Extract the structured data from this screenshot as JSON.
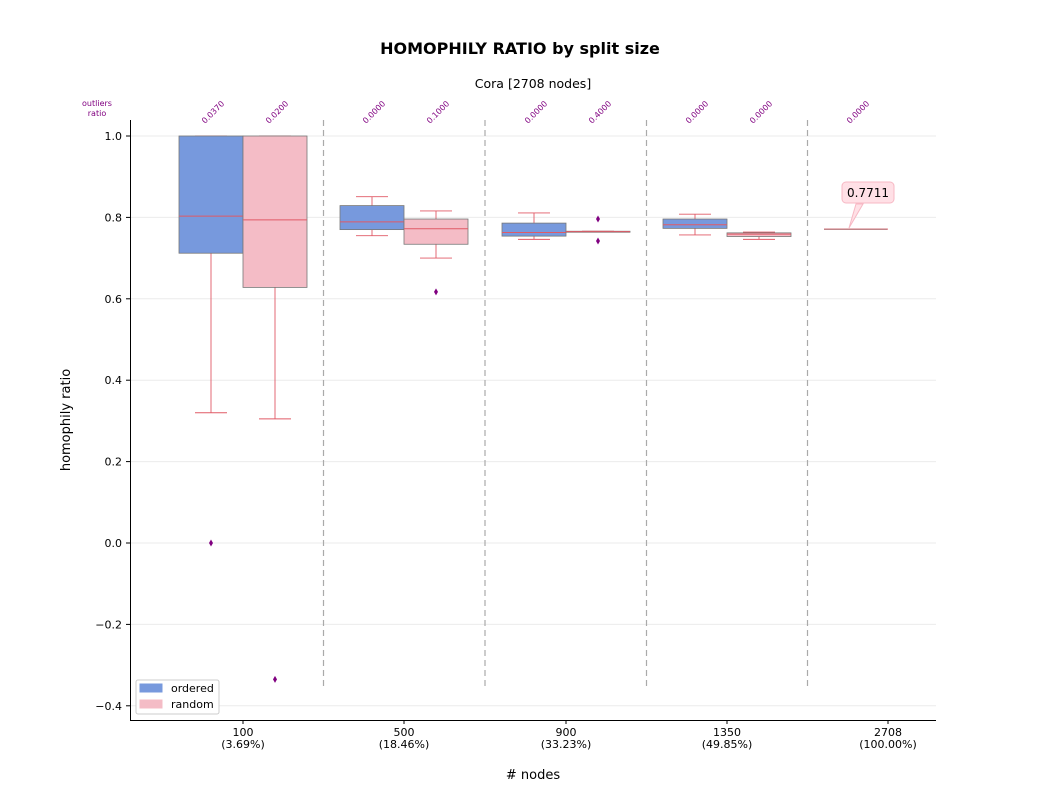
{
  "chart_data": {
    "type": "box",
    "title": "HOMOPHILY RATIO by split size",
    "subtitle": "Cora [2708 nodes]",
    "xlabel": "# nodes",
    "ylabel": "homophily ratio",
    "ylim": [
      -0.43,
      1.035
    ],
    "yticks": [
      -0.4,
      -0.2,
      0.0,
      0.2,
      0.4,
      0.6,
      0.8,
      1.0
    ],
    "ytick_labels": [
      "−0.4",
      "−0.2",
      "0.0",
      "0.2",
      "0.4",
      "0.6",
      "0.8",
      "1.0"
    ],
    "grid": "horizontal",
    "legend_position": "lower-left",
    "outliers_header": [
      "outliers",
      "ratio"
    ],
    "categories": [
      {
        "label": "100",
        "sublabel": "(3.69%)"
      },
      {
        "label": "500",
        "sublabel": "(18.46%)"
      },
      {
        "label": "900",
        "sublabel": "(33.23%)"
      },
      {
        "label": "1350",
        "sublabel": "(49.85%)"
      },
      {
        "label": "2708",
        "sublabel": "(100.00%)"
      }
    ],
    "series": [
      {
        "name": "ordered",
        "color": "#7799dd",
        "boxes": [
          {
            "whislo": 0.32,
            "q1": 0.712,
            "med": 0.803,
            "q3": 1.0,
            "whishi": 1.0,
            "fliers": [
              0.0
            ],
            "outlier_ratio": "0.0370"
          },
          {
            "whislo": 0.755,
            "q1": 0.77,
            "med": 0.789,
            "q3": 0.829,
            "whishi": 0.851,
            "fliers": [],
            "outlier_ratio": "0.0000"
          },
          {
            "whislo": 0.746,
            "q1": 0.754,
            "med": 0.763,
            "q3": 0.786,
            "whishi": 0.811,
            "fliers": [],
            "outlier_ratio": "0.0000"
          },
          {
            "whislo": 0.757,
            "q1": 0.773,
            "med": 0.782,
            "q3": 0.796,
            "whishi": 0.808,
            "fliers": [],
            "outlier_ratio": "0.0000"
          }
        ]
      },
      {
        "name": "random",
        "color": "#f4bcc6",
        "boxes": [
          {
            "whislo": 0.305,
            "q1": 0.628,
            "med": 0.794,
            "q3": 1.0,
            "whishi": 1.0,
            "fliers": [
              -0.335
            ],
            "outlier_ratio": "0.0200"
          },
          {
            "whislo": 0.7,
            "q1": 0.734,
            "med": 0.772,
            "q3": 0.796,
            "whishi": 0.816,
            "fliers": [
              0.617
            ],
            "outlier_ratio": "0.1000"
          },
          {
            "whislo": 0.764,
            "q1": 0.764,
            "med": 0.765,
            "q3": 0.766,
            "whishi": 0.766,
            "fliers": [
              0.796,
              0.742
            ],
            "outlier_ratio": "0.4000"
          },
          {
            "whislo": 0.746,
            "q1": 0.753,
            "med": 0.759,
            "q3": 0.762,
            "whishi": 0.764,
            "fliers": [],
            "outlier_ratio": "0.0000"
          }
        ]
      }
    ],
    "full_graph": {
      "value": 0.7711,
      "label": "0.7711",
      "outlier_ratio": "0.0000"
    }
  }
}
